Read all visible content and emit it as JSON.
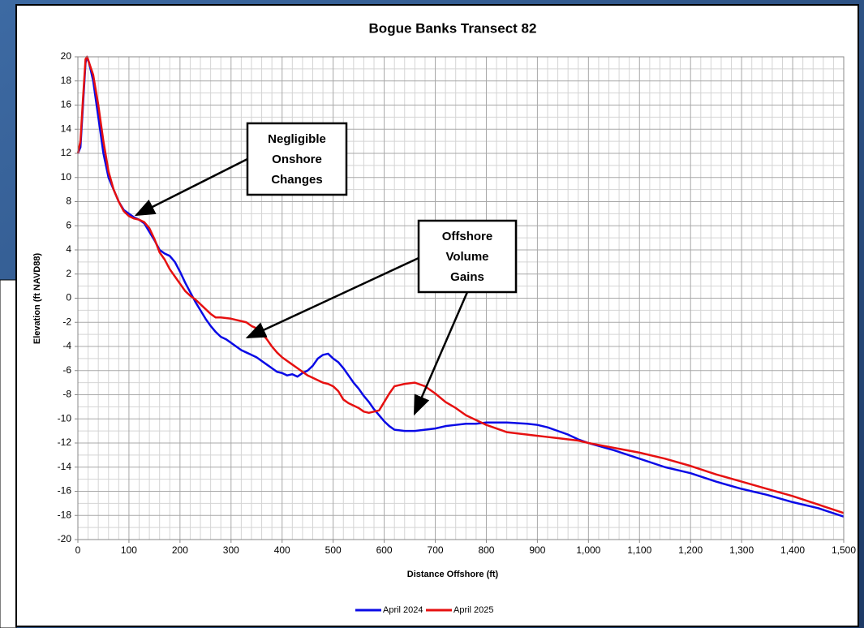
{
  "chart_data": {
    "type": "line",
    "title": "Bogue Banks Transect 82",
    "x_label": "Distance Offshore (ft)",
    "y_label": "Elevation (ft NAVD88)",
    "x": [
      0,
      5,
      10,
      15,
      18,
      22,
      30,
      40,
      50,
      60,
      70,
      80,
      90,
      100,
      110,
      120,
      130,
      140,
      150,
      160,
      170,
      180,
      190,
      200,
      210,
      220,
      230,
      240,
      250,
      260,
      270,
      280,
      290,
      300,
      310,
      320,
      330,
      340,
      350,
      360,
      370,
      380,
      390,
      400,
      410,
      420,
      430,
      440,
      450,
      460,
      470,
      480,
      490,
      500,
      510,
      520,
      530,
      540,
      550,
      560,
      570,
      580,
      590,
      600,
      610,
      620,
      640,
      660,
      680,
      700,
      720,
      740,
      760,
      780,
      800,
      840,
      880,
      900,
      920,
      940,
      960,
      980,
      1000,
      1050,
      1100,
      1150,
      1200,
      1250,
      1300,
      1350,
      1400,
      1450,
      1500
    ],
    "series": [
      {
        "name": "April 2024",
        "color": "#0a0ae6",
        "values": [
          12,
          12.5,
          16,
          19.5,
          20,
          19.5,
          18,
          15,
          12,
          10,
          9,
          8,
          7.3,
          7,
          6.7,
          6.5,
          6.2,
          5.5,
          4.8,
          4,
          3.7,
          3.5,
          3,
          2.2,
          1.3,
          0.5,
          -0.3,
          -1,
          -1.7,
          -2.3,
          -2.8,
          -3.2,
          -3.4,
          -3.7,
          -4,
          -4.3,
          -4.5,
          -4.7,
          -4.9,
          -5.2,
          -5.5,
          -5.8,
          -6.1,
          -6.2,
          -6.4,
          -6.3,
          -6.5,
          -6.2,
          -6,
          -5.6,
          -5,
          -4.7,
          -4.6,
          -5,
          -5.3,
          -5.8,
          -6.4,
          -7,
          -7.5,
          -8.1,
          -8.6,
          -9.2,
          -9.7,
          -10.2,
          -10.6,
          -10.9,
          -11,
          -11,
          -10.9,
          -10.8,
          -10.6,
          -10.5,
          -10.4,
          -10.4,
          -10.3,
          -10.3,
          -10.4,
          -10.5,
          -10.7,
          -11,
          -11.3,
          -11.7,
          -12,
          -12.6,
          -13.3,
          -14,
          -14.5,
          -15.2,
          -15.8,
          -16.3,
          -16.9,
          -17.4,
          -18.1
        ]
      },
      {
        "name": "April 2025",
        "color": "#e61010",
        "values": [
          12,
          13,
          16.5,
          19.8,
          20,
          19.5,
          18.5,
          16,
          13,
          10.5,
          9,
          8,
          7.2,
          6.8,
          6.6,
          6.5,
          6.3,
          5.8,
          4.9,
          3.8,
          3.2,
          2.4,
          1.8,
          1.2,
          0.6,
          0.2,
          -0.1,
          -0.5,
          -0.9,
          -1.3,
          -1.6,
          -1.6,
          -1.65,
          -1.7,
          -1.8,
          -1.9,
          -2,
          -2.3,
          -2.5,
          -2.9,
          -3.4,
          -4,
          -4.5,
          -4.9,
          -5.2,
          -5.5,
          -5.8,
          -6.1,
          -6.4,
          -6.6,
          -6.8,
          -7,
          -7.1,
          -7.3,
          -7.7,
          -8.4,
          -8.7,
          -8.9,
          -9.1,
          -9.4,
          -9.5,
          -9.4,
          -9.3,
          -8.6,
          -7.9,
          -7.3,
          -7.1,
          -7,
          -7.3,
          -7.9,
          -8.6,
          -9.1,
          -9.7,
          -10.1,
          -10.5,
          -11.1,
          -11.3,
          -11.4,
          -11.5,
          -11.6,
          -11.7,
          -11.8,
          -12,
          -12.4,
          -12.8,
          -13.3,
          -13.9,
          -14.6,
          -15.2,
          -15.8,
          -16.4,
          -17.1,
          -17.8
        ]
      }
    ],
    "xlim": [
      0,
      1500
    ],
    "ylim": [
      -20,
      20
    ],
    "xticks": [
      0,
      100,
      200,
      300,
      400,
      500,
      600,
      700,
      800,
      900,
      {
        "value": 1000,
        "label": "1,000"
      },
      {
        "value": 1100,
        "label": "1,100"
      },
      {
        "value": 1200,
        "label": "1,200"
      },
      {
        "value": 1300,
        "label": "1,300"
      },
      {
        "value": 1400,
        "label": "1,400"
      },
      {
        "value": 1500,
        "label": "1,500"
      }
    ],
    "yticks": [
      -20,
      -18,
      -16,
      -14,
      -12,
      -10,
      -8,
      -6,
      -4,
      -2,
      0,
      2,
      4,
      6,
      8,
      10,
      12,
      14,
      16,
      18,
      20
    ],
    "grid": true,
    "legend": "bottom",
    "annotations": [
      {
        "lines": [
          "Negligible",
          "Onshore",
          "Changes"
        ]
      },
      {
        "lines": [
          "Offshore",
          "Volume",
          "Gains"
        ]
      }
    ]
  }
}
